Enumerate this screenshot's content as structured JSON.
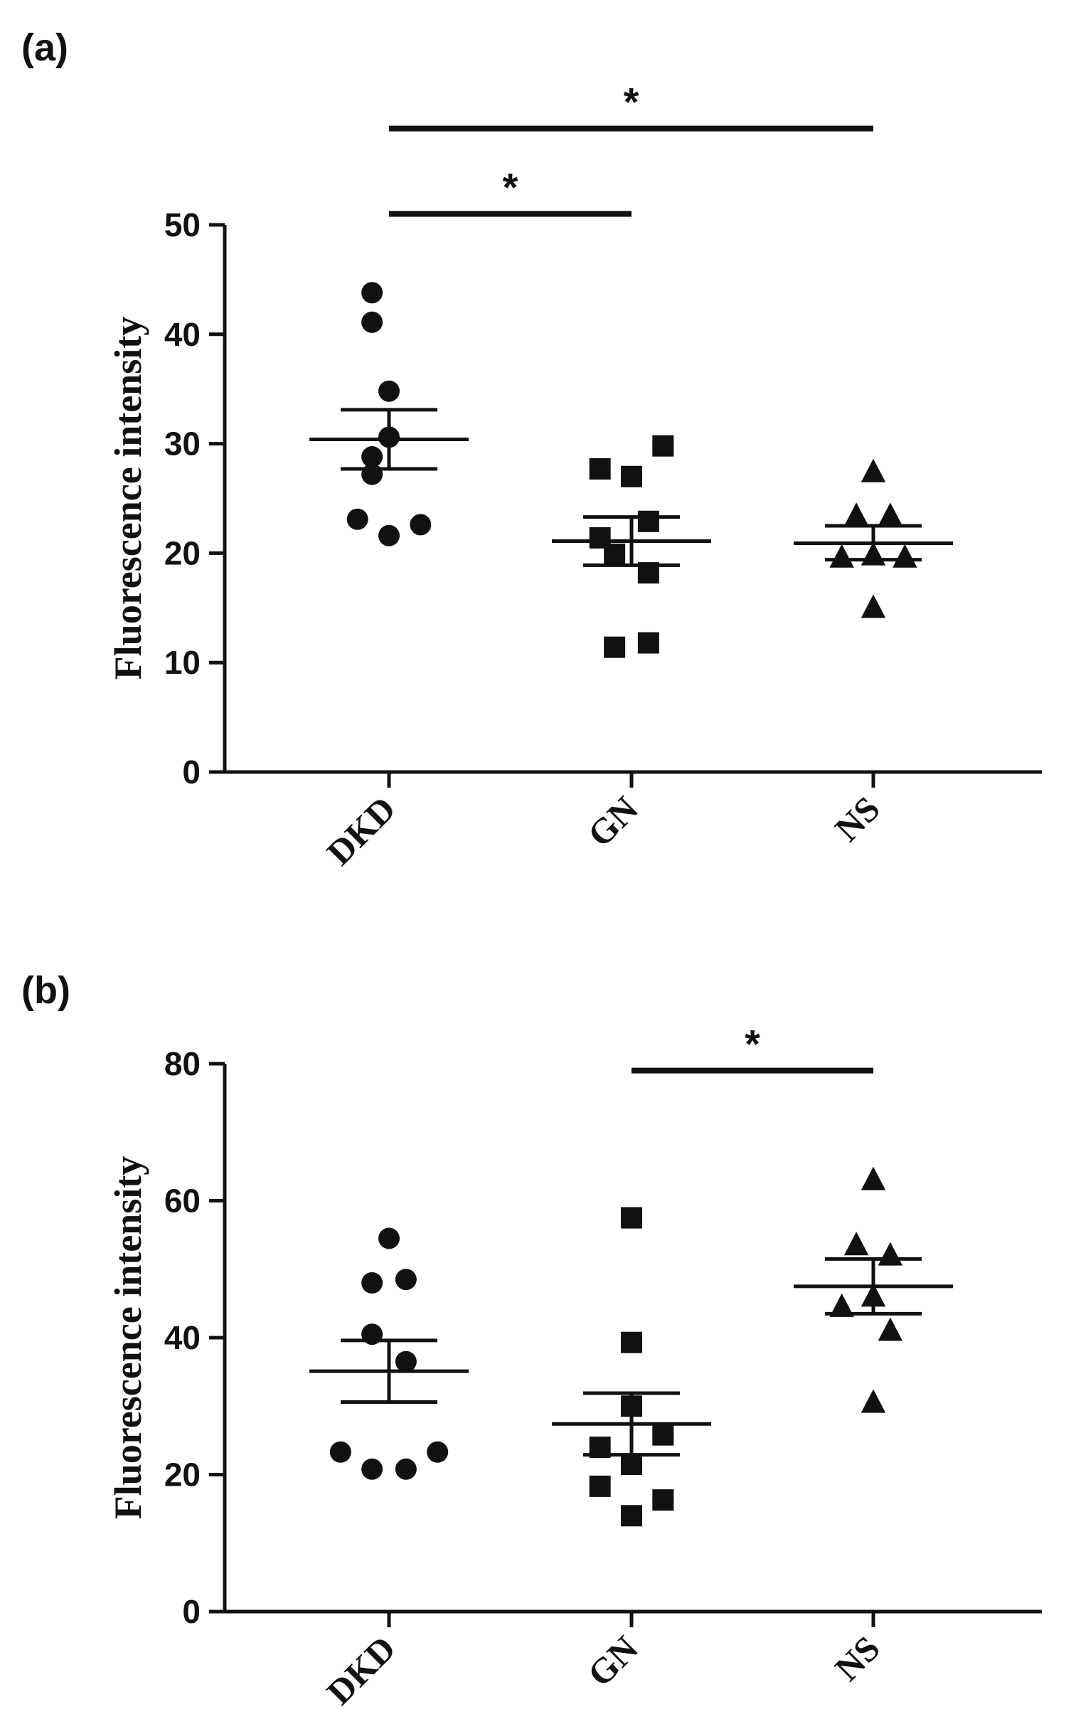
{
  "chart_data": [
    {
      "type": "scatter",
      "panel_label": "(a)",
      "title": "",
      "xlabel": "",
      "ylabel": "Fluorescence intensity",
      "ylim": [
        0,
        50
      ],
      "yticks": [
        0,
        10,
        20,
        30,
        40,
        50
      ],
      "categories": [
        "DKD",
        "GN",
        "NS"
      ],
      "series": [
        {
          "name": "DKD",
          "marker": "circle",
          "points": [
            {
              "x": -0.07,
              "y": 43.8
            },
            {
              "x": -0.07,
              "y": 41.1
            },
            {
              "x": 0.0,
              "y": 34.8
            },
            {
              "x": 0.0,
              "y": 30.6
            },
            {
              "x": -0.07,
              "y": 28.8
            },
            {
              "x": -0.07,
              "y": 27.2
            },
            {
              "x": -0.13,
              "y": 23.1
            },
            {
              "x": 0.13,
              "y": 22.6
            },
            {
              "x": 0.0,
              "y": 21.6
            }
          ],
          "mean": 30.4,
          "sem_low": 27.7,
          "sem_high": 33.1
        },
        {
          "name": "GN",
          "marker": "square",
          "points": [
            {
              "x": 0.13,
              "y": 29.8
            },
            {
              "x": -0.13,
              "y": 27.7
            },
            {
              "x": 0.0,
              "y": 27.0
            },
            {
              "x": 0.07,
              "y": 22.9
            },
            {
              "x": -0.13,
              "y": 21.4
            },
            {
              "x": -0.07,
              "y": 19.9
            },
            {
              "x": 0.07,
              "y": 18.2
            },
            {
              "x": -0.07,
              "y": 11.4
            },
            {
              "x": 0.07,
              "y": 11.8
            }
          ],
          "mean": 21.1,
          "sem_low": 18.9,
          "sem_high": 23.3
        },
        {
          "name": "NS",
          "marker": "triangle",
          "points": [
            {
              "x": 0.0,
              "y": 27.4
            },
            {
              "x": -0.07,
              "y": 23.4
            },
            {
              "x": 0.07,
              "y": 23.4
            },
            {
              "x": -0.13,
              "y": 19.6
            },
            {
              "x": 0.0,
              "y": 19.8
            },
            {
              "x": 0.13,
              "y": 19.6
            },
            {
              "x": 0.0,
              "y": 15.0
            }
          ],
          "mean": 20.9,
          "sem_low": 19.4,
          "sem_high": 22.5
        }
      ],
      "significance": [
        {
          "from": "DKD",
          "to": "GN",
          "label": "*",
          "level": 51.0
        },
        {
          "from": "DKD",
          "to": "NS",
          "label": "*",
          "level": 58.8
        }
      ]
    },
    {
      "type": "scatter",
      "panel_label": "(b)",
      "title": "",
      "xlabel": "",
      "ylabel": "Fluorescence intensity",
      "ylim": [
        0,
        80
      ],
      "yticks": [
        0,
        20,
        40,
        60,
        80
      ],
      "categories": [
        "DKD",
        "GN",
        "NS"
      ],
      "series": [
        {
          "name": "DKD",
          "marker": "circle",
          "points": [
            {
              "x": 0.0,
              "y": 54.5
            },
            {
              "x": -0.07,
              "y": 48.0
            },
            {
              "x": 0.07,
              "y": 48.5
            },
            {
              "x": -0.07,
              "y": 40.5
            },
            {
              "x": 0.07,
              "y": 36.5
            },
            {
              "x": -0.2,
              "y": 23.3
            },
            {
              "x": 0.2,
              "y": 23.3
            },
            {
              "x": -0.07,
              "y": 20.8
            },
            {
              "x": 0.07,
              "y": 20.8
            }
          ],
          "mean": 35.1,
          "sem_low": 30.6,
          "sem_high": 39.6
        },
        {
          "name": "GN",
          "marker": "square",
          "points": [
            {
              "x": 0.0,
              "y": 57.5
            },
            {
              "x": 0.0,
              "y": 39.3
            },
            {
              "x": 0.0,
              "y": 30.0
            },
            {
              "x": 0.13,
              "y": 25.8
            },
            {
              "x": -0.13,
              "y": 24.0
            },
            {
              "x": 0.0,
              "y": 21.5
            },
            {
              "x": -0.13,
              "y": 18.3
            },
            {
              "x": 0.13,
              "y": 16.3
            },
            {
              "x": 0.0,
              "y": 14.0
            }
          ],
          "mean": 27.4,
          "sem_low": 22.9,
          "sem_high": 31.9
        },
        {
          "name": "NS",
          "marker": "triangle",
          "points": [
            {
              "x": 0.0,
              "y": 63.0
            },
            {
              "x": -0.07,
              "y": 53.5
            },
            {
              "x": 0.07,
              "y": 52.0
            },
            {
              "x": 0.0,
              "y": 46.0
            },
            {
              "x": -0.13,
              "y": 44.5
            },
            {
              "x": 0.07,
              "y": 41.0
            },
            {
              "x": 0.0,
              "y": 30.5
            }
          ],
          "mean": 47.5,
          "sem_low": 43.5,
          "sem_high": 51.5
        }
      ],
      "significance": [
        {
          "from": "GN",
          "to": "NS",
          "label": "*",
          "level": 79.0
        }
      ]
    }
  ]
}
